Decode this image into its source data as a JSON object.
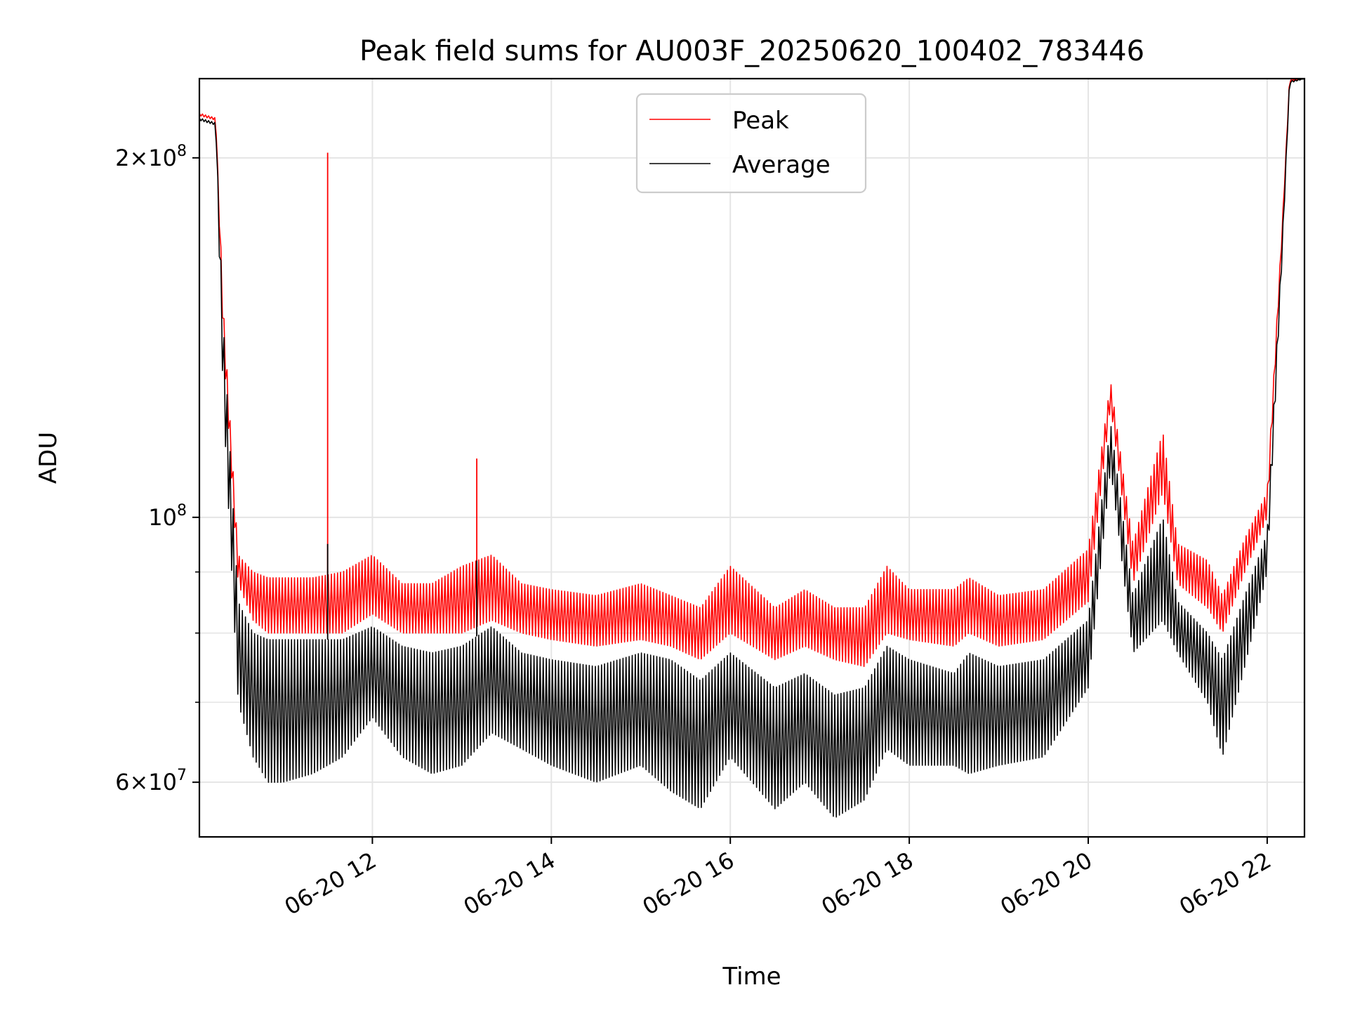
{
  "chart_data": {
    "type": "line",
    "title": "Peak field sums for AU003F_20250620_100402_783446",
    "xlabel": "Time",
    "ylabel": "ADU",
    "xlim": [
      "2025-06-20T10:04",
      "2025-06-20T22:25"
    ],
    "ylim": [
      54000000,
      233000000
    ],
    "yscale": "log",
    "grid": true,
    "legend_position": "upper center",
    "x_ticks": [
      {
        "value": "2025-06-20T12:00",
        "label": "06-20 12"
      },
      {
        "value": "2025-06-20T14:00",
        "label": "06-20 14"
      },
      {
        "value": "2025-06-20T16:00",
        "label": "06-20 16"
      },
      {
        "value": "2025-06-20T18:00",
        "label": "06-20 18"
      },
      {
        "value": "2025-06-20T20:00",
        "label": "06-20 20"
      },
      {
        "value": "2025-06-20T22:00",
        "label": "06-20 22"
      }
    ],
    "y_ticks": [
      {
        "value": 60000000,
        "label_mantissa": "6",
        "label_base": "×10",
        "label_exp": "7"
      },
      {
        "value": 100000000,
        "label_mantissa": "",
        "label_base": "10",
        "label_exp": "8"
      },
      {
        "value": 200000000,
        "label_mantissa": "2",
        "label_base": "×10",
        "label_exp": "8"
      }
    ],
    "y_minor_ticks": [
      70000000,
      80000000,
      90000000
    ],
    "series": [
      {
        "name": "Peak",
        "color": "#ff0000",
        "x": [
          "2025-06-20T10:04",
          "2025-06-20T10:15",
          "2025-06-20T10:20",
          "2025-06-20T10:30",
          "2025-06-20T10:40",
          "2025-06-20T10:50",
          "2025-06-20T11:00",
          "2025-06-20T11:20",
          "2025-06-20T11:40",
          "2025-06-20T12:00",
          "2025-06-20T12:20",
          "2025-06-20T12:40",
          "2025-06-20T13:00",
          "2025-06-20T13:20",
          "2025-06-20T13:40",
          "2025-06-20T14:00",
          "2025-06-20T14:30",
          "2025-06-20T15:00",
          "2025-06-20T15:20",
          "2025-06-20T15:40",
          "2025-06-20T16:00",
          "2025-06-20T16:30",
          "2025-06-20T16:50",
          "2025-06-20T17:10",
          "2025-06-20T17:30",
          "2025-06-20T17:45",
          "2025-06-20T18:00",
          "2025-06-20T18:30",
          "2025-06-20T18:40",
          "2025-06-20T19:00",
          "2025-06-20T19:30",
          "2025-06-20T20:00",
          "2025-06-20T20:15",
          "2025-06-20T20:30",
          "2025-06-20T20:50",
          "2025-06-20T21:00",
          "2025-06-20T21:20",
          "2025-06-20T21:30",
          "2025-06-20T21:45",
          "2025-06-20T22:00",
          "2025-06-20T22:10",
          "2025-06-20T22:15",
          "2025-06-20T22:25"
        ],
        "upper": [
          218000000,
          216000000,
          150000000,
          93000000,
          90000000,
          89000000,
          89000000,
          89000000,
          90000000,
          93000000,
          88000000,
          88000000,
          91000000,
          93000000,
          88000000,
          87000000,
          86000000,
          88000000,
          86000000,
          84000000,
          91000000,
          84000000,
          87000000,
          84000000,
          84000000,
          91000000,
          87000000,
          87000000,
          89000000,
          86000000,
          87000000,
          94000000,
          130000000,
          95000000,
          118000000,
          95000000,
          92000000,
          86000000,
          96000000,
          105000000,
          175000000,
          233000000,
          233000000
        ],
        "base": [
          217000000,
          215000000,
          140000000,
          88000000,
          82000000,
          80000000,
          80000000,
          80000000,
          80000000,
          83000000,
          80000000,
          80000000,
          80000000,
          82000000,
          80000000,
          79000000,
          78000000,
          79000000,
          78000000,
          76000000,
          80000000,
          76000000,
          78000000,
          76000000,
          75000000,
          80000000,
          79000000,
          78000000,
          80000000,
          78000000,
          79000000,
          85000000,
          124000000,
          88000000,
          105000000,
          88000000,
          84000000,
          80000000,
          90000000,
          100000000,
          172000000,
          232000000,
          233000000
        ],
        "spikes": [
          {
            "x": "2025-06-20T11:30",
            "y": 202000000
          },
          {
            "x": "2025-06-20T13:10",
            "y": 112000000
          }
        ]
      },
      {
        "name": "Average",
        "color": "#000000",
        "x": [
          "2025-06-20T10:04",
          "2025-06-20T10:15",
          "2025-06-20T10:20",
          "2025-06-20T10:30",
          "2025-06-20T10:40",
          "2025-06-20T10:50",
          "2025-06-20T11:00",
          "2025-06-20T11:20",
          "2025-06-20T11:40",
          "2025-06-20T12:00",
          "2025-06-20T12:20",
          "2025-06-20T12:40",
          "2025-06-20T13:00",
          "2025-06-20T13:20",
          "2025-06-20T13:40",
          "2025-06-20T14:00",
          "2025-06-20T14:30",
          "2025-06-20T15:00",
          "2025-06-20T15:20",
          "2025-06-20T15:40",
          "2025-06-20T16:00",
          "2025-06-20T16:30",
          "2025-06-20T16:50",
          "2025-06-20T17:10",
          "2025-06-20T17:30",
          "2025-06-20T17:45",
          "2025-06-20T18:00",
          "2025-06-20T18:30",
          "2025-06-20T18:40",
          "2025-06-20T19:00",
          "2025-06-20T19:30",
          "2025-06-20T20:00",
          "2025-06-20T20:15",
          "2025-06-20T20:30",
          "2025-06-20T20:50",
          "2025-06-20T21:00",
          "2025-06-20T21:20",
          "2025-06-20T21:30",
          "2025-06-20T21:45",
          "2025-06-20T22:00",
          "2025-06-20T22:10",
          "2025-06-20T22:15",
          "2025-06-20T22:25"
        ],
        "upper": [
          216000000,
          214000000,
          145000000,
          85000000,
          80000000,
          79000000,
          79000000,
          79000000,
          79000000,
          81000000,
          78000000,
          77000000,
          78000000,
          81000000,
          77000000,
          76000000,
          75000000,
          77000000,
          76000000,
          73000000,
          77000000,
          72000000,
          74000000,
          71000000,
          72000000,
          78000000,
          76000000,
          74000000,
          77000000,
          75000000,
          76000000,
          82000000,
          120000000,
          86000000,
          100000000,
          85000000,
          80000000,
          76000000,
          86000000,
          97000000,
          170000000,
          232000000,
          233000000
        ],
        "lower": [
          215000000,
          213000000,
          125000000,
          70000000,
          63000000,
          60000000,
          60000000,
          61000000,
          63000000,
          68000000,
          63000000,
          61000000,
          62000000,
          66000000,
          64000000,
          62000000,
          60000000,
          62000000,
          59000000,
          57000000,
          63000000,
          57000000,
          60000000,
          56000000,
          58000000,
          64000000,
          62000000,
          62000000,
          61000000,
          62000000,
          63000000,
          72000000,
          110000000,
          77000000,
          82000000,
          77000000,
          70000000,
          63000000,
          75000000,
          90000000,
          165000000,
          231000000,
          233000000
        ],
        "spikes": [
          {
            "x": "2025-06-20T11:30",
            "y": 95000000
          },
          {
            "x": "2025-06-20T13:10",
            "y": 92000000
          }
        ]
      }
    ]
  }
}
